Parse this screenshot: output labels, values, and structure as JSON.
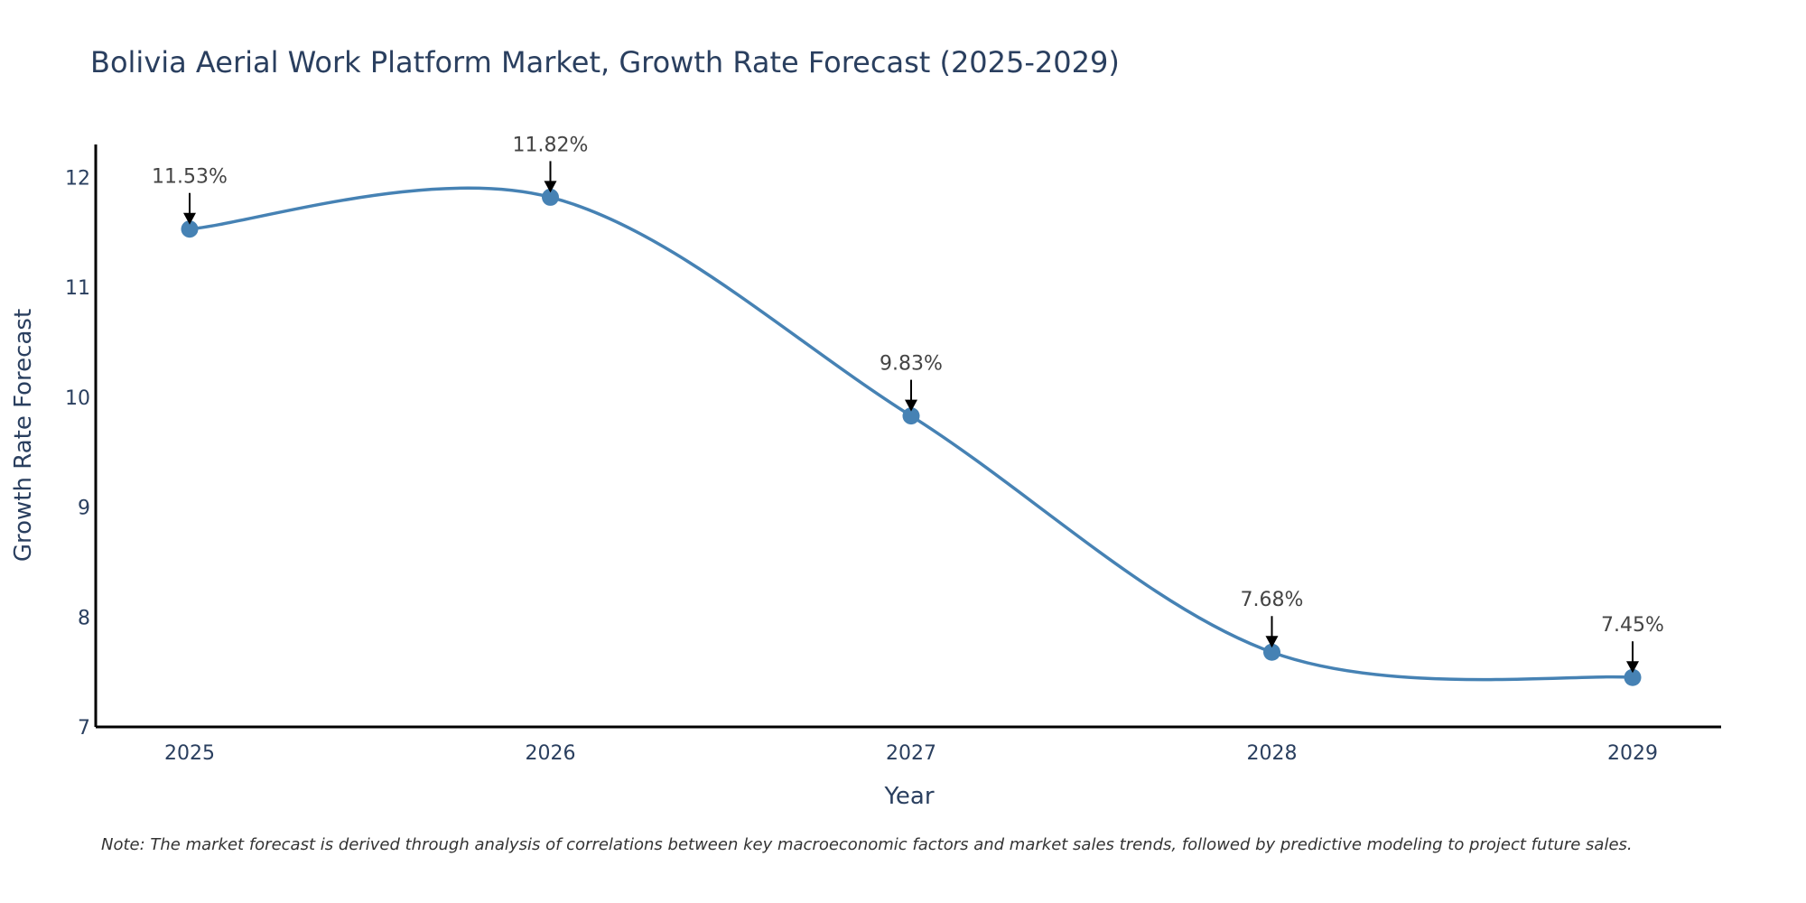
{
  "chart_data": {
    "type": "line",
    "title": "Bolivia Aerial Work Platform Market, Growth Rate Forecast (2025-2029)",
    "xlabel": "Year",
    "ylabel": "Growth Rate Forecast",
    "categories": [
      "2025",
      "2026",
      "2027",
      "2028",
      "2029"
    ],
    "values": [
      11.53,
      11.82,
      9.83,
      7.68,
      7.45
    ],
    "labels": [
      "11.53%",
      "11.82%",
      "9.83%",
      "7.68%",
      "7.45%"
    ],
    "ylim": [
      7,
      12.3
    ],
    "yticks": [
      "7",
      "8",
      "9",
      "10",
      "11",
      "12"
    ],
    "line_shape": "spline",
    "grid": false,
    "series_color": "#4682b4",
    "note": "Note: The market forecast is derived through analysis of correlations between key macroeconomic factors and market sales trends, followed by predictive modeling to project future sales."
  }
}
